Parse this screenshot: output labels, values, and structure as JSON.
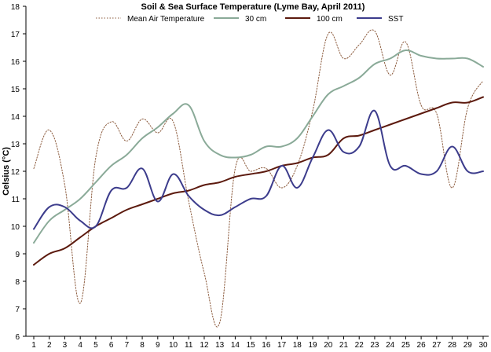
{
  "chart_data": {
    "type": "line",
    "title": "Soil & Sea Surface Temperature (Lyme Bay, April 2011)",
    "xlabel": "",
    "ylabel": "Celsius (°C)",
    "xlim": [
      1,
      30
    ],
    "ylim": [
      6,
      18
    ],
    "x_ticks": [
      1,
      2,
      3,
      4,
      5,
      6,
      7,
      8,
      9,
      10,
      11,
      12,
      13,
      14,
      15,
      16,
      17,
      18,
      19,
      20,
      21,
      22,
      23,
      24,
      25,
      26,
      27,
      28,
      29,
      30
    ],
    "y_ticks": [
      6,
      7,
      8,
      9,
      10,
      11,
      12,
      13,
      14,
      15,
      16,
      17,
      18
    ],
    "grid": false,
    "legend_position": "top",
    "series": [
      {
        "name": "Mean Air Temperature",
        "color": "#8b5a3c",
        "style": "dotted",
        "x": [
          1,
          2,
          3,
          4,
          5,
          6,
          7,
          8,
          9,
          10,
          11,
          12,
          13,
          14,
          15,
          16,
          17,
          18,
          19,
          20,
          21,
          22,
          23,
          24,
          25,
          26,
          27,
          28,
          29,
          30
        ],
        "values": [
          12.1,
          13.5,
          11.5,
          7.2,
          12.5,
          13.8,
          13.1,
          13.9,
          13.4,
          13.8,
          10.9,
          8.3,
          6.5,
          12.1,
          12.0,
          12.1,
          11.4,
          12.2,
          14.2,
          17.0,
          16.1,
          16.6,
          17.1,
          15.5,
          16.7,
          14.4,
          14.1,
          11.4,
          14.3,
          15.3
        ]
      },
      {
        "name": "30 cm",
        "color": "#8aaa98",
        "style": "solid",
        "x": [
          1,
          2,
          3,
          4,
          5,
          6,
          7,
          8,
          9,
          10,
          11,
          12,
          13,
          14,
          15,
          16,
          17,
          18,
          19,
          20,
          21,
          22,
          23,
          24,
          25,
          26,
          27,
          28,
          29,
          30
        ],
        "values": [
          9.4,
          10.2,
          10.6,
          11.0,
          11.6,
          12.2,
          12.6,
          13.2,
          13.6,
          14.1,
          14.4,
          13.1,
          12.6,
          12.5,
          12.6,
          12.9,
          12.9,
          13.2,
          14.0,
          14.8,
          15.1,
          15.4,
          15.9,
          16.1,
          16.4,
          16.2,
          16.1,
          16.1,
          16.1,
          15.8
        ]
      },
      {
        "name": "100 cm",
        "color": "#5c1a0e",
        "style": "solid",
        "x": [
          1,
          2,
          3,
          4,
          5,
          6,
          7,
          8,
          9,
          10,
          11,
          12,
          13,
          14,
          15,
          16,
          17,
          18,
          19,
          20,
          21,
          22,
          23,
          24,
          25,
          26,
          27,
          28,
          29,
          30
        ],
        "values": [
          8.6,
          9.0,
          9.2,
          9.6,
          10.0,
          10.3,
          10.6,
          10.8,
          11.0,
          11.2,
          11.3,
          11.5,
          11.6,
          11.8,
          11.9,
          12.0,
          12.2,
          12.3,
          12.5,
          12.6,
          13.2,
          13.3,
          13.5,
          13.7,
          13.9,
          14.1,
          14.3,
          14.5,
          14.5,
          14.7
        ]
      },
      {
        "name": "SST",
        "color": "#3c3c8c",
        "style": "solid",
        "x": [
          1,
          2,
          3,
          4,
          5,
          6,
          7,
          8,
          9,
          10,
          11,
          12,
          13,
          14,
          15,
          16,
          17,
          18,
          19,
          20,
          21,
          22,
          23,
          24,
          25,
          26,
          27,
          28,
          29,
          30
        ],
        "values": [
          9.9,
          10.7,
          10.7,
          10.2,
          10.0,
          11.3,
          11.4,
          12.1,
          10.9,
          11.9,
          11.1,
          10.6,
          10.4,
          10.7,
          11.0,
          11.1,
          12.2,
          11.4,
          12.5,
          13.5,
          12.7,
          12.9,
          14.2,
          12.2,
          12.2,
          11.9,
          12.0,
          12.9,
          12.0,
          12.0
        ]
      }
    ]
  }
}
